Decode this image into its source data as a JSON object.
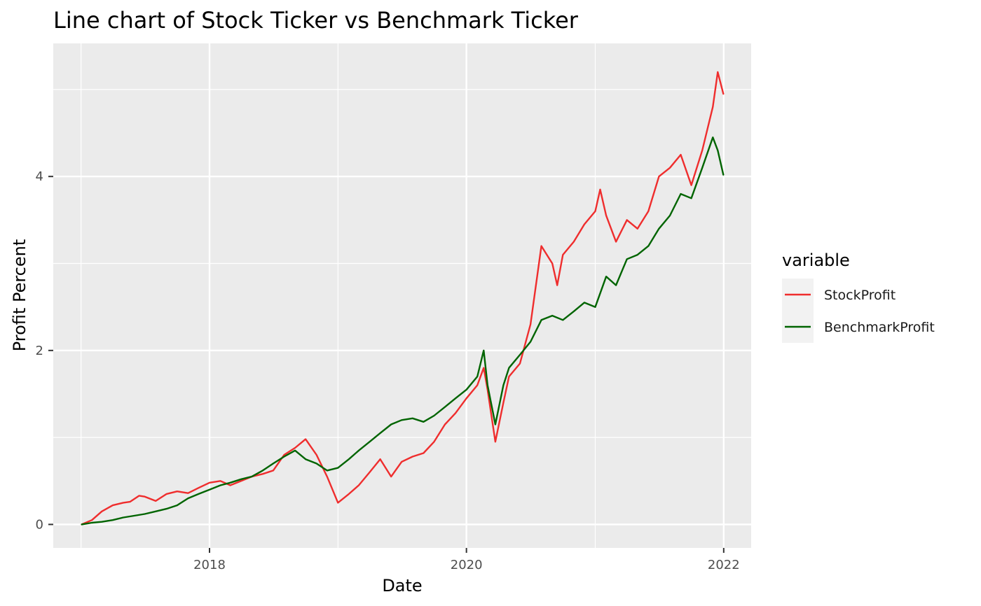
{
  "chart_data": {
    "type": "line",
    "title": "Line chart of Stock Ticker vs Benchmark Ticker",
    "xlabel": "Date",
    "ylabel": "Profit Percent",
    "x_ticks": [
      "2018",
      "2020",
      "2022"
    ],
    "y_ticks": [
      "0",
      "2",
      "4"
    ],
    "xlim": [
      "2016-10-14",
      "2022-03-20"
    ],
    "ylim": [
      -0.27,
      5.53
    ],
    "grid": true,
    "legend": {
      "title": "variable",
      "position": "right"
    },
    "series": [
      {
        "name": "StockProfit",
        "color": "#ef2d2d",
        "x": [
          "2017-01-03",
          "2017-02-01",
          "2017-03-01",
          "2017-04-01",
          "2017-05-01",
          "2017-05-20",
          "2017-06-15",
          "2017-07-01",
          "2017-08-01",
          "2017-09-01",
          "2017-10-01",
          "2017-11-01",
          "2017-12-01",
          "2018-01-01",
          "2018-02-01",
          "2018-03-01",
          "2018-04-01",
          "2018-05-01",
          "2018-06-01",
          "2018-07-01",
          "2018-08-01",
          "2018-09-01",
          "2018-10-01",
          "2018-11-01",
          "2018-12-01",
          "2019-01-01",
          "2019-02-01",
          "2019-03-01",
          "2019-04-01",
          "2019-05-01",
          "2019-06-01",
          "2019-07-01",
          "2019-08-01",
          "2019-09-01",
          "2019-10-01",
          "2019-11-01",
          "2019-12-01",
          "2020-01-01",
          "2020-02-01",
          "2020-02-19",
          "2020-03-01",
          "2020-03-23",
          "2020-04-15",
          "2020-05-01",
          "2020-06-01",
          "2020-07-01",
          "2020-08-01",
          "2020-09-01",
          "2020-09-15",
          "2020-10-01",
          "2020-11-01",
          "2020-12-01",
          "2021-01-01",
          "2021-01-15",
          "2021-02-01",
          "2021-03-01",
          "2021-04-01",
          "2021-05-01",
          "2021-06-01",
          "2021-07-01",
          "2021-08-01",
          "2021-09-01",
          "2021-10-01",
          "2021-11-01",
          "2021-12-01",
          "2021-12-15",
          "2021-12-31"
        ],
        "y": [
          0.0,
          0.05,
          0.15,
          0.22,
          0.25,
          0.26,
          0.33,
          0.32,
          0.27,
          0.35,
          0.38,
          0.36,
          0.42,
          0.48,
          0.5,
          0.45,
          0.5,
          0.55,
          0.58,
          0.62,
          0.8,
          0.88,
          0.98,
          0.8,
          0.55,
          0.25,
          0.35,
          0.45,
          0.6,
          0.75,
          0.55,
          0.72,
          0.78,
          0.82,
          0.95,
          1.15,
          1.28,
          1.45,
          1.6,
          1.8,
          1.55,
          0.95,
          1.4,
          1.7,
          1.85,
          2.3,
          3.2,
          3.0,
          2.75,
          3.1,
          3.25,
          3.45,
          3.6,
          3.85,
          3.55,
          3.25,
          3.5,
          3.4,
          3.6,
          4.0,
          4.1,
          4.25,
          3.9,
          4.3,
          4.8,
          5.2,
          4.95
        ]
      },
      {
        "name": "BenchmarkProfit",
        "color": "#006400",
        "x": [
          "2017-01-03",
          "2017-02-01",
          "2017-03-01",
          "2017-04-01",
          "2017-05-01",
          "2017-06-01",
          "2017-07-01",
          "2017-08-01",
          "2017-09-01",
          "2017-10-01",
          "2017-11-01",
          "2017-12-01",
          "2018-01-01",
          "2018-02-01",
          "2018-03-01",
          "2018-04-01",
          "2018-05-01",
          "2018-06-01",
          "2018-07-01",
          "2018-08-01",
          "2018-09-01",
          "2018-10-01",
          "2018-11-01",
          "2018-12-01",
          "2019-01-01",
          "2019-02-01",
          "2019-03-01",
          "2019-04-01",
          "2019-05-01",
          "2019-06-01",
          "2019-07-01",
          "2019-08-01",
          "2019-09-01",
          "2019-10-01",
          "2019-11-01",
          "2019-12-01",
          "2020-01-01",
          "2020-02-01",
          "2020-02-19",
          "2020-03-01",
          "2020-03-23",
          "2020-04-15",
          "2020-05-01",
          "2020-06-01",
          "2020-07-01",
          "2020-08-01",
          "2020-09-01",
          "2020-10-01",
          "2020-11-01",
          "2020-12-01",
          "2021-01-01",
          "2021-02-01",
          "2021-03-01",
          "2021-04-01",
          "2021-05-01",
          "2021-06-01",
          "2021-07-01",
          "2021-08-01",
          "2021-09-01",
          "2021-10-01",
          "2021-11-01",
          "2021-12-01",
          "2021-12-15",
          "2021-12-31"
        ],
        "y": [
          0.0,
          0.02,
          0.03,
          0.05,
          0.08,
          0.1,
          0.12,
          0.15,
          0.18,
          0.22,
          0.3,
          0.35,
          0.4,
          0.45,
          0.48,
          0.52,
          0.55,
          0.62,
          0.7,
          0.78,
          0.85,
          0.75,
          0.7,
          0.62,
          0.65,
          0.75,
          0.85,
          0.95,
          1.05,
          1.15,
          1.2,
          1.22,
          1.18,
          1.25,
          1.35,
          1.45,
          1.55,
          1.7,
          2.0,
          1.6,
          1.15,
          1.6,
          1.8,
          1.95,
          2.1,
          2.35,
          2.4,
          2.35,
          2.45,
          2.55,
          2.5,
          2.85,
          2.75,
          3.05,
          3.1,
          3.2,
          3.4,
          3.55,
          3.8,
          3.75,
          4.1,
          4.45,
          4.3,
          4.02
        ]
      }
    ]
  }
}
